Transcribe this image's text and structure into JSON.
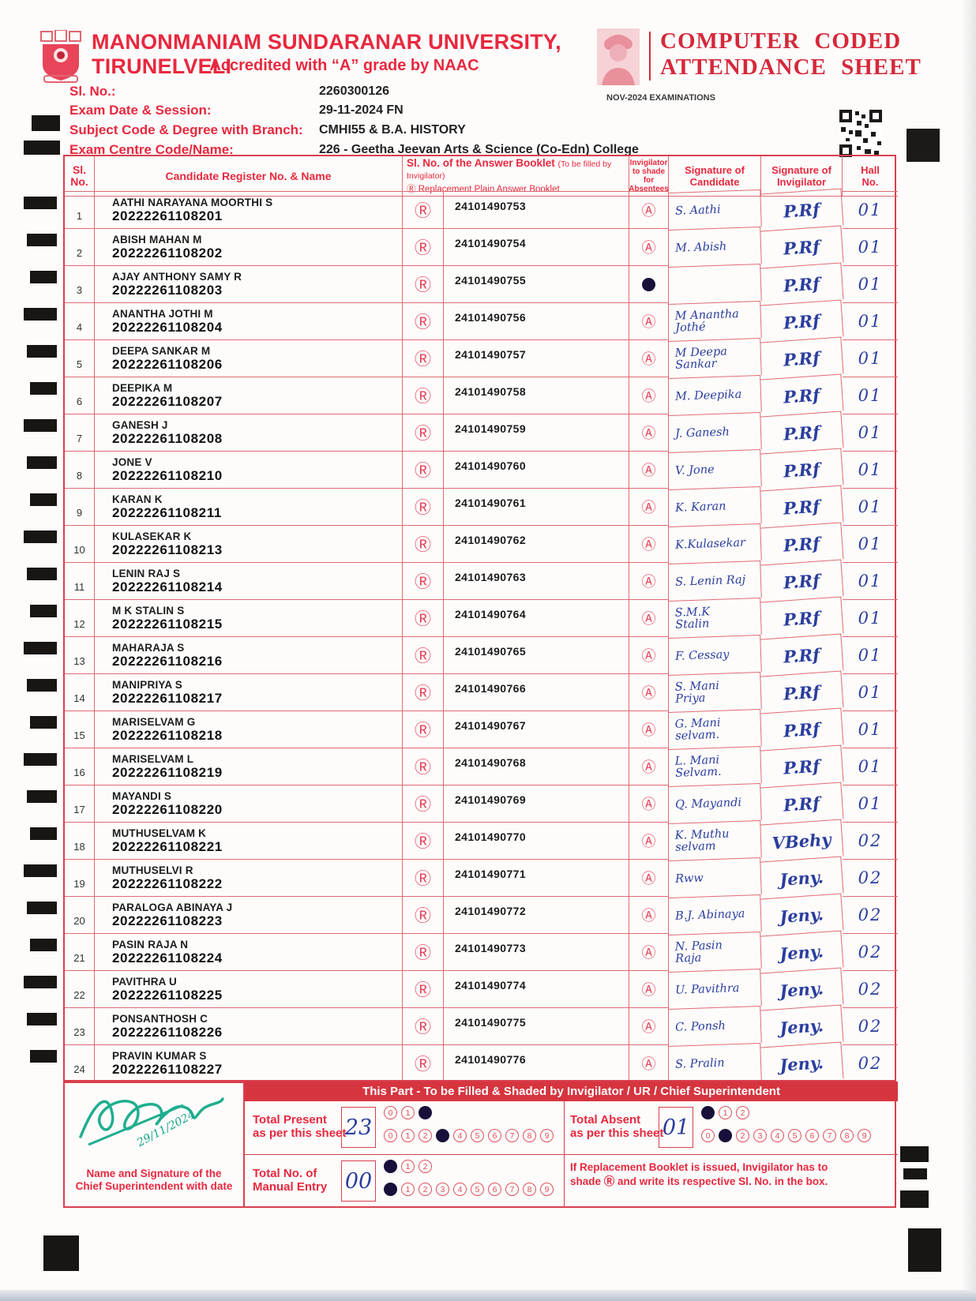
{
  "header": {
    "university": "MANONMANIAM SUNDARANAR UNIVERSITY, TIRUNELVELI",
    "accreditation": "Accredited with “A” grade by NAAC",
    "sheet_title_line1": "COMPUTER CODED",
    "sheet_title_line2": "ATTENDANCE SHEET",
    "exam_session": "NOV-2024 EXAMINATIONS"
  },
  "info": {
    "sl_no_label": "Sl. No.:",
    "sl_no": "2260300126",
    "exam_date_label": "Exam Date & Session:",
    "exam_date": "29-11-2024 FN",
    "subject_label": "Subject Code & Degree with Branch:",
    "subject": "CMHI55 & B.A. HISTORY",
    "centre_label": "Exam Centre Code/Name:",
    "centre": "226 - Geetha Jeevan Arts & Science (Co-Edn) College"
  },
  "table": {
    "headers": {
      "sl": "Sl.\nNo.",
      "candidate": "Candidate Register No. & Name",
      "booklet_main": "Sl. No. of the Answer Booklet",
      "booklet_note": "(To be filled by Invigilator)",
      "booklet_sub": "Ⓡ Replacement Plain Answer Booklet",
      "absent": "Invigilator\nto shade for\nAbsentees",
      "sig_candidate": "Signature of\nCandidate",
      "sig_invigilator": "Signature of\nInvigilator",
      "hall": "Hall\nNo."
    },
    "symbols": {
      "replacement": "Ⓡ",
      "absent": "Ⓐ"
    },
    "rows": [
      {
        "no": "1",
        "name": "AATHI NARAYANA MOORTHI S",
        "reg": "20222261108201",
        "booklet": "24101490753",
        "absent": false,
        "cand_sig": "S. Aathi",
        "inv_sig": "P.Rf",
        "hall": "01"
      },
      {
        "no": "2",
        "name": "ABISH MAHAN M",
        "reg": "20222261108202",
        "booklet": "24101490754",
        "absent": false,
        "cand_sig": "M. Abish",
        "inv_sig": "P.Rf",
        "hall": "01"
      },
      {
        "no": "3",
        "name": "AJAY ANTHONY SAMY R",
        "reg": "20222261108203",
        "booklet": "24101490755",
        "absent": true,
        "cand_sig": "",
        "inv_sig": "P.Rf",
        "hall": "01"
      },
      {
        "no": "4",
        "name": "ANANTHA JOTHI M",
        "reg": "20222261108204",
        "booklet": "24101490756",
        "absent": false,
        "cand_sig": "M Anantha\nJothé",
        "inv_sig": "P.Rf",
        "hall": "01"
      },
      {
        "no": "5",
        "name": "DEEPA SANKAR M",
        "reg": "20222261108206",
        "booklet": "24101490757",
        "absent": false,
        "cand_sig": "M Deepa\nSankar",
        "inv_sig": "P.Rf",
        "hall": "01"
      },
      {
        "no": "6",
        "name": "DEEPIKA M",
        "reg": "20222261108207",
        "booklet": "24101490758",
        "absent": false,
        "cand_sig": "M. Deepika",
        "inv_sig": "P.Rf",
        "hall": "01"
      },
      {
        "no": "7",
        "name": "GANESH J",
        "reg": "20222261108208",
        "booklet": "24101490759",
        "absent": false,
        "cand_sig": "J. Ganesh",
        "inv_sig": "P.Rf",
        "hall": "01"
      },
      {
        "no": "8",
        "name": "JONE V",
        "reg": "20222261108210",
        "booklet": "24101490760",
        "absent": false,
        "cand_sig": "V. Jone",
        "inv_sig": "P.Rf",
        "hall": "01"
      },
      {
        "no": "9",
        "name": "KARAN K",
        "reg": "20222261108211",
        "booklet": "24101490761",
        "absent": false,
        "cand_sig": "K. Karan",
        "inv_sig": "P.Rf",
        "hall": "01"
      },
      {
        "no": "10",
        "name": "KULASEKAR K",
        "reg": "20222261108213",
        "booklet": "24101490762",
        "absent": false,
        "cand_sig": "K.Kulasekar",
        "inv_sig": "P.Rf",
        "hall": "01"
      },
      {
        "no": "11",
        "name": "LENIN RAJ S",
        "reg": "20222261108214",
        "booklet": "24101490763",
        "absent": false,
        "cand_sig": "S. Lenin Raj",
        "inv_sig": "P.Rf",
        "hall": "01"
      },
      {
        "no": "12",
        "name": "M K STALIN S",
        "reg": "20222261108215",
        "booklet": "24101490764",
        "absent": false,
        "cand_sig": "S.M.K\nStalin",
        "inv_sig": "P.Rf",
        "hall": "01"
      },
      {
        "no": "13",
        "name": "MAHARAJA S",
        "reg": "20222261108216",
        "booklet": "24101490765",
        "absent": false,
        "cand_sig": "F. Cessay",
        "inv_sig": "P.Rf",
        "hall": "01"
      },
      {
        "no": "14",
        "name": "MANIPRIYA S",
        "reg": "20222261108217",
        "booklet": "24101490766",
        "absent": false,
        "cand_sig": "S. Mani\nPriya",
        "inv_sig": "P.Rf",
        "hall": "01"
      },
      {
        "no": "15",
        "name": "MARISELVAM G",
        "reg": "20222261108218",
        "booklet": "24101490767",
        "absent": false,
        "cand_sig": "G. Mani\nselvam.",
        "inv_sig": "P.Rf",
        "hall": "01"
      },
      {
        "no": "16",
        "name": "MARISELVAM L",
        "reg": "20222261108219",
        "booklet": "24101490768",
        "absent": false,
        "cand_sig": "L. Mani\nSelvam.",
        "inv_sig": "P.Rf",
        "hall": "01"
      },
      {
        "no": "17",
        "name": "MAYANDI S",
        "reg": "20222261108220",
        "booklet": "24101490769",
        "absent": false,
        "cand_sig": "Q. Mayandi",
        "inv_sig": "P.Rf",
        "hall": "01"
      },
      {
        "no": "18",
        "name": "MUTHUSELVAM K",
        "reg": "20222261108221",
        "booklet": "24101490770",
        "absent": false,
        "cand_sig": "K. Muthu\nselvam",
        "inv_sig": "VBehy",
        "hall": "02"
      },
      {
        "no": "19",
        "name": "MUTHUSELVI R",
        "reg": "20222261108222",
        "booklet": "24101490771",
        "absent": false,
        "cand_sig": "Rww",
        "inv_sig": "Jeny.",
        "hall": "02"
      },
      {
        "no": "20",
        "name": "PARALOGA ABINAYA J",
        "reg": "20222261108223",
        "booklet": "24101490772",
        "absent": false,
        "cand_sig": "B.J. Abinaya",
        "inv_sig": "Jeny.",
        "hall": "02"
      },
      {
        "no": "21",
        "name": "PASIN RAJA N",
        "reg": "20222261108224",
        "booklet": "24101490773",
        "absent": false,
        "cand_sig": "N. Pasin\nRaja",
        "inv_sig": "Jeny.",
        "hall": "02"
      },
      {
        "no": "22",
        "name": "PAVITHRA U",
        "reg": "20222261108225",
        "booklet": "24101490774",
        "absent": false,
        "cand_sig": "U. Pavithra",
        "inv_sig": "Jeny.",
        "hall": "02"
      },
      {
        "no": "23",
        "name": "PONSANTHOSH C",
        "reg": "20222261108226",
        "booklet": "24101490775",
        "absent": false,
        "cand_sig": "C. Ponsh",
        "inv_sig": "Jeny.",
        "hall": "02"
      },
      {
        "no": "24",
        "name": "PRAVIN KUMAR S",
        "reg": "20222261108227",
        "booklet": "24101490776",
        "absent": false,
        "cand_sig": "S. Pralin",
        "inv_sig": "Jeny.",
        "hall": "02"
      }
    ]
  },
  "footer": {
    "banner": "This Part - To be Filled & Shaded by Invigilator / UR / Chief Superintendent",
    "cs_label": "Name and Signature of the\nChief Superintendent with date",
    "cs_date": "29/11/2024",
    "note_line1": "If Replacement Booklet is issued, Invigilator has to",
    "note_line2": "shade Ⓡ and write its respective Sl. No. in the box.",
    "tens_digits": [
      "0",
      "1",
      "2"
    ],
    "units_digits": [
      "0",
      "1",
      "2",
      "3",
      "4",
      "5",
      "6",
      "7",
      "8",
      "9"
    ],
    "counters": {
      "present": {
        "label": "Total Present\nas per this sheet",
        "value": "23",
        "tens_filled": 2,
        "units_filled": 3
      },
      "absent": {
        "label": "Total Absent\nas per this sheet",
        "value": "01",
        "tens_filled": 0,
        "units_filled": 1
      },
      "manual": {
        "label": "Total No. of\nManual Entry",
        "value": "00",
        "tens_filled": 0,
        "units_filled": 0
      }
    }
  }
}
